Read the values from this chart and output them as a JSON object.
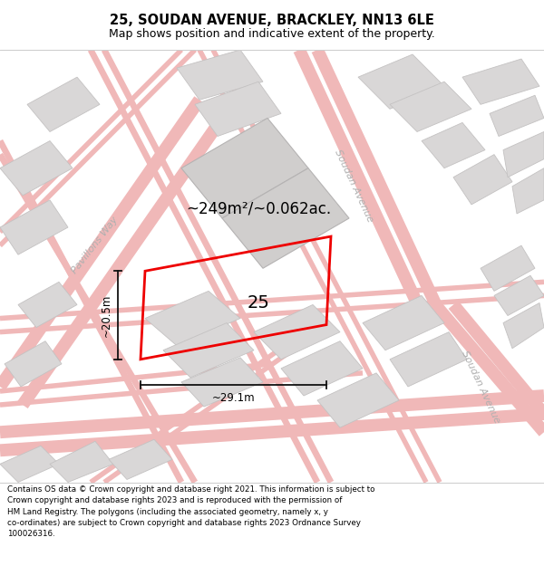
{
  "title": "25, SOUDAN AVENUE, BRACKLEY, NN13 6LE",
  "subtitle": "Map shows position and indicative extent of the property.",
  "footer": "Contains OS data © Crown copyright and database right 2021. This information is subject to Crown copyright and database rights 2023 and is reproduced with the permission of HM Land Registry. The polygons (including the associated geometry, namely x, y co-ordinates) are subject to Crown copyright and database rights 2023 Ordnance Survey 100026316.",
  "bg_color": "#f2f0f0",
  "title_bg": "#ffffff",
  "footer_bg": "#ffffff",
  "block_fill": "#d9d7d7",
  "block_edge": "#c4c2c2",
  "road_line": "#f0b8b8",
  "road_label": "#b0b0b0",
  "red_plot": "#ee0000",
  "measure_color": "#111111",
  "area_text": "~249m²/~0.062ac.",
  "width_text": "~29.1m",
  "height_text": "~20.5m",
  "plot_label": "25",
  "road1_label": "Pavillons Way",
  "road2_label_top": "Soudan Avenue",
  "road2_label_bot": "Soudan Avenue",
  "title_fontsize": 10.5,
  "subtitle_fontsize": 9.0,
  "footer_fontsize": 6.3
}
